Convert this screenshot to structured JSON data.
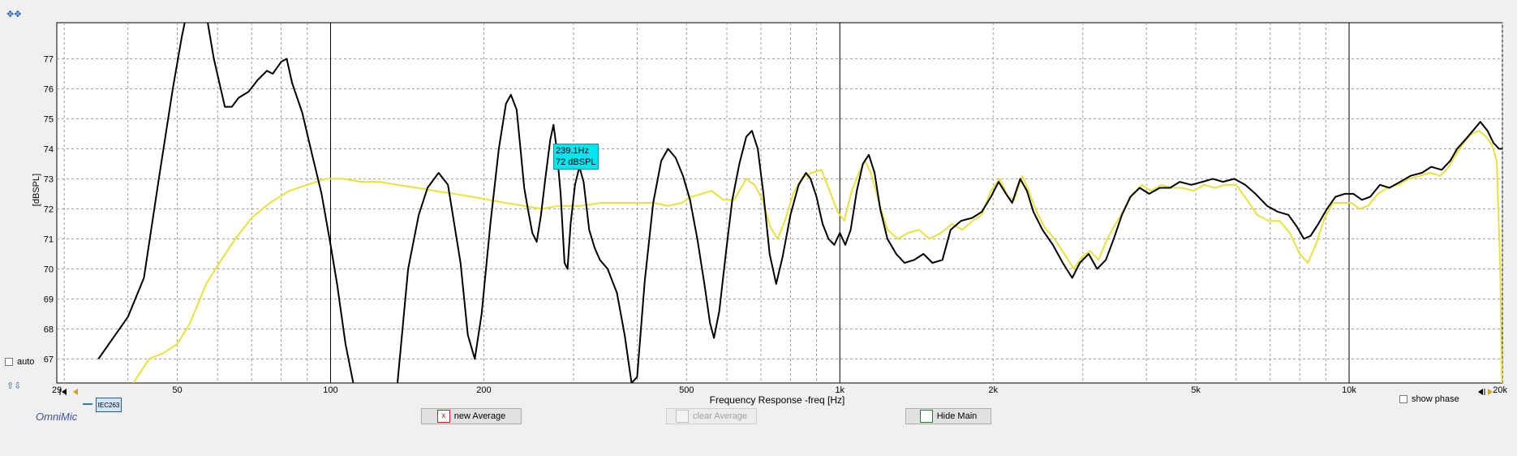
{
  "chart_data": {
    "type": "line",
    "xscale": "log",
    "xlim": [
      29,
      20000
    ],
    "ylim": [
      66.2,
      78.2
    ],
    "ylabel": "[dBSPL]",
    "xlabel": "Frequency Response -freq [Hz]",
    "yticks": [
      67,
      68,
      69,
      70,
      71,
      72,
      73,
      74,
      75,
      76,
      77
    ],
    "xticks": [
      {
        "v": 29,
        "label": "29"
      },
      {
        "v": 50,
        "label": "50"
      },
      {
        "v": 100,
        "label": "100"
      },
      {
        "v": 200,
        "label": "200"
      },
      {
        "v": 500,
        "label": "500"
      },
      {
        "v": 1000,
        "label": "1k"
      },
      {
        "v": 2000,
        "label": "2k"
      },
      {
        "v": 5000,
        "label": "5k"
      },
      {
        "v": 10000,
        "label": "10k"
      },
      {
        "v": 20000,
        "label": "20k"
      }
    ],
    "grid": true,
    "series": [
      {
        "color": "#000000",
        "points": [
          [
            35,
            67.0
          ],
          [
            40,
            68.4
          ],
          [
            43,
            69.7
          ],
          [
            46,
            73.0
          ],
          [
            49,
            76.0
          ],
          [
            51,
            77.7
          ],
          [
            52,
            78.4
          ],
          [
            57,
            78.5
          ],
          [
            59,
            77.0
          ],
          [
            62,
            75.4
          ],
          [
            64,
            75.4
          ],
          [
            66,
            75.7
          ],
          [
            69,
            75.9
          ],
          [
            72,
            76.3
          ],
          [
            75,
            76.6
          ],
          [
            77,
            76.5
          ],
          [
            80,
            76.9
          ],
          [
            82,
            77.0
          ],
          [
            84,
            76.2
          ],
          [
            88,
            75.2
          ],
          [
            92,
            73.8
          ],
          [
            96,
            72.5
          ],
          [
            100,
            70.8
          ],
          [
            103,
            69.5
          ],
          [
            107,
            67.5
          ],
          [
            112,
            65.8
          ],
          [
            135,
            66.0
          ],
          [
            142,
            70.0
          ],
          [
            149,
            71.8
          ],
          [
            155,
            72.7
          ],
          [
            163,
            73.2
          ],
          [
            170,
            72.8
          ],
          [
            180,
            70.2
          ],
          [
            186,
            67.8
          ],
          [
            192,
            67.0
          ],
          [
            198,
            68.5
          ],
          [
            206,
            71.5
          ],
          [
            214,
            74.0
          ],
          [
            221,
            75.5
          ],
          [
            226,
            75.8
          ],
          [
            232,
            75.3
          ],
          [
            236,
            74.0
          ],
          [
            240,
            72.7
          ],
          [
            244,
            72.0
          ],
          [
            249,
            71.2
          ],
          [
            254,
            70.9
          ],
          [
            259,
            71.8
          ],
          [
            264,
            73.0
          ],
          [
            270,
            74.3
          ],
          [
            274,
            74.8
          ],
          [
            278,
            74.0
          ],
          [
            283,
            72.5
          ],
          [
            288,
            70.2
          ],
          [
            292,
            70.0
          ],
          [
            296,
            71.5
          ],
          [
            302,
            72.8
          ],
          [
            308,
            73.4
          ],
          [
            314,
            72.9
          ],
          [
            322,
            71.3
          ],
          [
            330,
            70.7
          ],
          [
            338,
            70.3
          ],
          [
            350,
            70.0
          ],
          [
            365,
            69.2
          ],
          [
            378,
            67.8
          ],
          [
            390,
            66.2
          ],
          [
            400,
            66.4
          ],
          [
            414,
            69.6
          ],
          [
            430,
            72.2
          ],
          [
            446,
            73.6
          ],
          [
            460,
            74.0
          ],
          [
            476,
            73.7
          ],
          [
            492,
            73.1
          ],
          [
            508,
            72.3
          ],
          [
            525,
            71.0
          ],
          [
            542,
            69.5
          ],
          [
            556,
            68.2
          ],
          [
            566,
            67.7
          ],
          [
            580,
            68.6
          ],
          [
            598,
            70.6
          ],
          [
            615,
            72.3
          ],
          [
            635,
            73.5
          ],
          [
            655,
            74.4
          ],
          [
            672,
            74.6
          ],
          [
            690,
            74.0
          ],
          [
            708,
            72.5
          ],
          [
            728,
            70.5
          ],
          [
            750,
            69.5
          ],
          [
            772,
            70.4
          ],
          [
            800,
            71.8
          ],
          [
            830,
            72.8
          ],
          [
            858,
            73.2
          ],
          [
            876,
            73.0
          ],
          [
            900,
            72.4
          ],
          [
            925,
            71.5
          ],
          [
            950,
            71.0
          ],
          [
            975,
            70.8
          ],
          [
            1000,
            71.2
          ],
          [
            1025,
            70.8
          ],
          [
            1050,
            71.3
          ],
          [
            1080,
            72.6
          ],
          [
            1110,
            73.5
          ],
          [
            1140,
            73.8
          ],
          [
            1170,
            73.2
          ],
          [
            1200,
            72.0
          ],
          [
            1240,
            71.0
          ],
          [
            1290,
            70.5
          ],
          [
            1340,
            70.2
          ],
          [
            1400,
            70.3
          ],
          [
            1460,
            70.5
          ],
          [
            1520,
            70.2
          ],
          [
            1590,
            70.3
          ],
          [
            1650,
            71.3
          ],
          [
            1730,
            71.6
          ],
          [
            1820,
            71.7
          ],
          [
            1900,
            71.9
          ],
          [
            1980,
            72.4
          ],
          [
            2050,
            72.9
          ],
          [
            2120,
            72.5
          ],
          [
            2180,
            72.2
          ],
          [
            2260,
            73.0
          ],
          [
            2330,
            72.6
          ],
          [
            2400,
            71.9
          ],
          [
            2500,
            71.3
          ],
          [
            2620,
            70.8
          ],
          [
            2740,
            70.2
          ],
          [
            2860,
            69.7
          ],
          [
            2960,
            70.2
          ],
          [
            3080,
            70.5
          ],
          [
            3200,
            70.0
          ],
          [
            3330,
            70.3
          ],
          [
            3450,
            71.0
          ],
          [
            3580,
            71.8
          ],
          [
            3720,
            72.4
          ],
          [
            3880,
            72.7
          ],
          [
            4050,
            72.5
          ],
          [
            4250,
            72.7
          ],
          [
            4450,
            72.7
          ],
          [
            4650,
            72.9
          ],
          [
            4900,
            72.8
          ],
          [
            5150,
            72.9
          ],
          [
            5400,
            73.0
          ],
          [
            5650,
            72.9
          ],
          [
            5950,
            73.0
          ],
          [
            6250,
            72.8
          ],
          [
            6550,
            72.5
          ],
          [
            6900,
            72.1
          ],
          [
            7250,
            71.9
          ],
          [
            7600,
            71.8
          ],
          [
            7900,
            71.4
          ],
          [
            8150,
            71.0
          ],
          [
            8400,
            71.1
          ],
          [
            8700,
            71.5
          ],
          [
            9050,
            72.0
          ],
          [
            9400,
            72.4
          ],
          [
            9800,
            72.5
          ],
          [
            10200,
            72.5
          ],
          [
            10600,
            72.3
          ],
          [
            11000,
            72.4
          ],
          [
            11500,
            72.8
          ],
          [
            12000,
            72.7
          ],
          [
            12600,
            72.9
          ],
          [
            13200,
            73.1
          ],
          [
            13900,
            73.2
          ],
          [
            14500,
            73.4
          ],
          [
            15200,
            73.3
          ],
          [
            15800,
            73.6
          ],
          [
            16300,
            74.0
          ],
          [
            16900,
            74.3
          ],
          [
            17500,
            74.6
          ],
          [
            18100,
            74.9
          ],
          [
            18700,
            74.6
          ],
          [
            19200,
            74.2
          ],
          [
            19700,
            74.0
          ],
          [
            20000,
            74.0
          ]
        ]
      },
      {
        "color": "#e8e23a",
        "points": [
          [
            41,
            66.2
          ],
          [
            44,
            67.0
          ],
          [
            47,
            67.2
          ],
          [
            50,
            67.5
          ],
          [
            53,
            68.2
          ],
          [
            57,
            69.5
          ],
          [
            61,
            70.3
          ],
          [
            65,
            71.0
          ],
          [
            70,
            71.7
          ],
          [
            76,
            72.2
          ],
          [
            83,
            72.6
          ],
          [
            90,
            72.8
          ],
          [
            98,
            73.0
          ],
          [
            106,
            73.0
          ],
          [
            115,
            72.9
          ],
          [
            125,
            72.9
          ],
          [
            135,
            72.8
          ],
          [
            148,
            72.7
          ],
          [
            160,
            72.6
          ],
          [
            175,
            72.5
          ],
          [
            190,
            72.4
          ],
          [
            205,
            72.3
          ],
          [
            220,
            72.2
          ],
          [
            240,
            72.1
          ],
          [
            260,
            72.0
          ],
          [
            280,
            72.1
          ],
          [
            310,
            72.1
          ],
          [
            340,
            72.2
          ],
          [
            370,
            72.2
          ],
          [
            400,
            72.2
          ],
          [
            430,
            72.2
          ],
          [
            460,
            72.1
          ],
          [
            490,
            72.2
          ],
          [
            510,
            72.4
          ],
          [
            535,
            72.5
          ],
          [
            560,
            72.6
          ],
          [
            590,
            72.3
          ],
          [
            620,
            72.3
          ],
          [
            655,
            73.0
          ],
          [
            680,
            72.8
          ],
          [
            705,
            72.3
          ],
          [
            730,
            71.4
          ],
          [
            755,
            71.0
          ],
          [
            780,
            71.6
          ],
          [
            810,
            72.5
          ],
          [
            840,
            73.0
          ],
          [
            880,
            73.2
          ],
          [
            920,
            73.3
          ],
          [
            960,
            72.5
          ],
          [
            990,
            71.9
          ],
          [
            1020,
            71.6
          ],
          [
            1055,
            72.6
          ],
          [
            1090,
            73.2
          ],
          [
            1120,
            73.6
          ],
          [
            1150,
            73.2
          ],
          [
            1190,
            72.3
          ],
          [
            1240,
            71.3
          ],
          [
            1300,
            71.0
          ],
          [
            1360,
            71.2
          ],
          [
            1430,
            71.3
          ],
          [
            1500,
            71.0
          ],
          [
            1580,
            71.2
          ],
          [
            1660,
            71.5
          ],
          [
            1740,
            71.3
          ],
          [
            1820,
            71.6
          ],
          [
            1900,
            71.8
          ],
          [
            1980,
            72.6
          ],
          [
            2060,
            73.0
          ],
          [
            2140,
            72.4
          ],
          [
            2200,
            72.3
          ],
          [
            2280,
            73.1
          ],
          [
            2350,
            72.6
          ],
          [
            2420,
            72.0
          ],
          [
            2520,
            71.4
          ],
          [
            2640,
            71.0
          ],
          [
            2760,
            70.5
          ],
          [
            2880,
            70.0
          ],
          [
            2990,
            70.4
          ],
          [
            3100,
            70.6
          ],
          [
            3220,
            70.3
          ],
          [
            3350,
            71.0
          ],
          [
            3480,
            71.5
          ],
          [
            3620,
            72.0
          ],
          [
            3760,
            72.5
          ],
          [
            3920,
            72.8
          ],
          [
            4080,
            72.6
          ],
          [
            4280,
            72.8
          ],
          [
            4480,
            72.7
          ],
          [
            4700,
            72.7
          ],
          [
            4950,
            72.6
          ],
          [
            5200,
            72.8
          ],
          [
            5450,
            72.7
          ],
          [
            5700,
            72.8
          ],
          [
            6000,
            72.8
          ],
          [
            6300,
            72.3
          ],
          [
            6600,
            71.8
          ],
          [
            6950,
            71.6
          ],
          [
            7300,
            71.6
          ],
          [
            7650,
            71.2
          ],
          [
            8000,
            70.5
          ],
          [
            8300,
            70.2
          ],
          [
            8600,
            70.8
          ],
          [
            8950,
            71.7
          ],
          [
            9300,
            72.2
          ],
          [
            9700,
            72.2
          ],
          [
            10100,
            72.2
          ],
          [
            10500,
            72.0
          ],
          [
            10900,
            72.1
          ],
          [
            11400,
            72.5
          ],
          [
            11900,
            72.7
          ],
          [
            12500,
            72.8
          ],
          [
            13100,
            73.0
          ],
          [
            13800,
            73.1
          ],
          [
            14400,
            73.2
          ],
          [
            15100,
            73.1
          ],
          [
            15700,
            73.4
          ],
          [
            16200,
            73.8
          ],
          [
            16800,
            74.2
          ],
          [
            17400,
            74.5
          ],
          [
            18000,
            74.6
          ],
          [
            18600,
            74.4
          ],
          [
            19100,
            74.1
          ],
          [
            19500,
            73.6
          ],
          [
            19800,
            70.0
          ],
          [
            19950,
            66.2
          ]
        ]
      }
    ],
    "cursor": {
      "freq": 239.1,
      "label1": "239.1Hz",
      "label2": "72 dBSPL"
    }
  },
  "controls": {
    "auto_label": "auto",
    "show_phase_label": "show phase",
    "brand": "OmniMic",
    "badge": "IEC263",
    "new_average": "new Average",
    "clear_average": "clear Average",
    "hide_main": "Hide Main"
  }
}
